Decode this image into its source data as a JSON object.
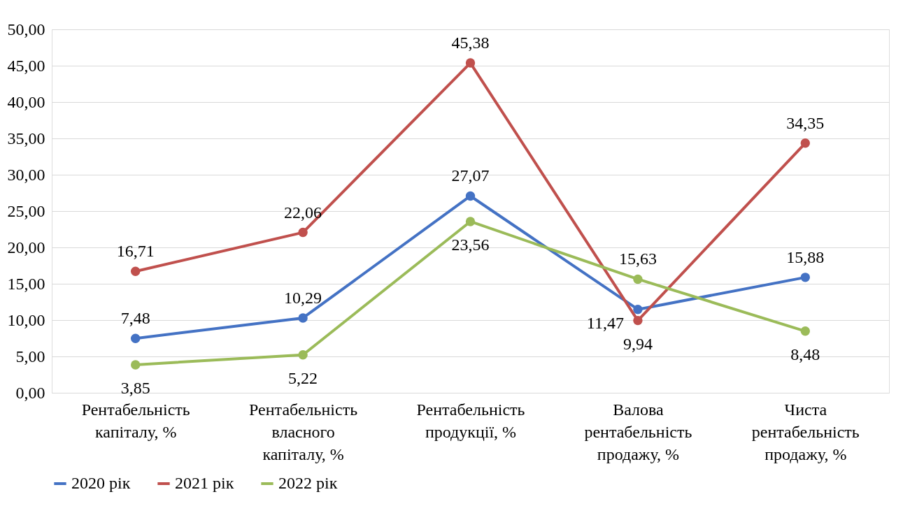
{
  "chart_data": {
    "type": "line",
    "categories": [
      "Рентабельність капіталу, %",
      "Рентабельність власного капіталу, %",
      "Рентабельність продукції, %",
      "Валова рентабельність продажу, %",
      "Чиста рентабельність продажу, %"
    ],
    "series": [
      {
        "name": "2020 рік",
        "color": "#4472c4",
        "values": [
          7.48,
          10.29,
          27.07,
          11.47,
          15.88
        ],
        "value_labels": [
          "7,48",
          "10,29",
          "27,07",
          "11,47",
          "15,88"
        ]
      },
      {
        "name": "2021 рік",
        "color": "#c0504d",
        "values": [
          16.71,
          22.06,
          45.38,
          9.94,
          34.35
        ],
        "value_labels": [
          "16,71",
          "22,06",
          "45,38",
          "9,94",
          "34,35"
        ]
      },
      {
        "name": "2022 рік",
        "color": "#9bbb59",
        "values": [
          3.85,
          5.22,
          23.56,
          15.63,
          8.48
        ],
        "value_labels": [
          "3,85",
          "5,22",
          "23,56",
          "15,63",
          "8,48"
        ]
      }
    ],
    "ylim": [
      0,
      50
    ],
    "yticks": [
      {
        "value": 0,
        "label": "0,00"
      },
      {
        "value": 5,
        "label": "5,00"
      },
      {
        "value": 10,
        "label": "10,00"
      },
      {
        "value": 15,
        "label": "15,00"
      },
      {
        "value": 20,
        "label": "20,00"
      },
      {
        "value": 25,
        "label": "25,00"
      },
      {
        "value": 30,
        "label": "30,00"
      },
      {
        "value": 35,
        "label": "35,00"
      },
      {
        "value": 40,
        "label": "40,00"
      },
      {
        "value": 45,
        "label": "45,00"
      },
      {
        "value": 50,
        "label": "50,00"
      }
    ],
    "grid": "y",
    "legend": "bottom",
    "marker": "circle",
    "line_style": "solid"
  }
}
